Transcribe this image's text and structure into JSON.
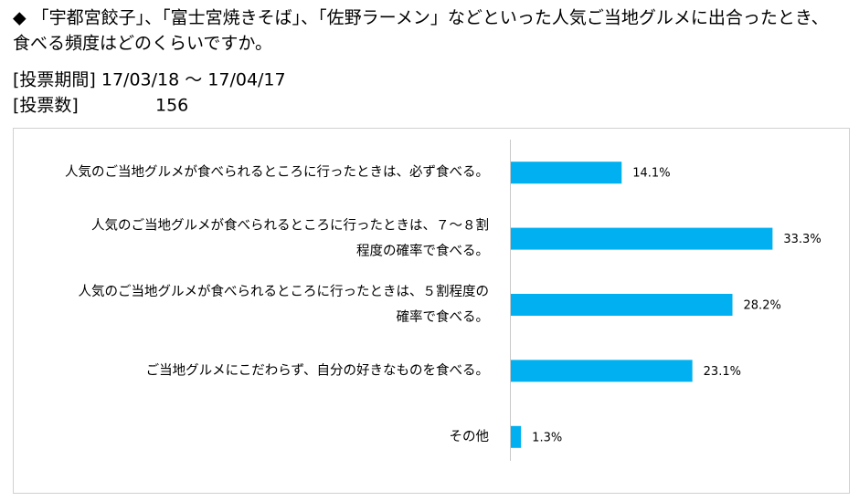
{
  "header": {
    "title": [
      "◆ 「宇都宮餃子」、「富士宮焼きそば」、「佐野ラーメン」などといった人気ご当地グルメに出合ったとき、",
      "食べる頻度はどのくらいですか。"
    ],
    "period": "[投票期間] 17/03/18 ～ 17/04/17",
    "votes_label": "[投票数]",
    "votes": 156
  },
  "chart_data": {
    "type": "barh",
    "categories": [
      [
        "人気のご当地グルメが食べられるところに行ったときは、必ず食べる。"
      ],
      [
        "人気のご当地グルメが食べられるところに行ったときは、７～８割",
        "程度の確率で食べる。"
      ],
      [
        "人気のご当地グルメが食べられるところに行ったときは、５割程度の",
        "確率で食べる。"
      ],
      [
        "ご当地グルメにこだわらず、自分の好きなものを食べる。"
      ],
      [
        "その他"
      ]
    ],
    "values": [
      14.1,
      33.3,
      28.2,
      23.1,
      1.3
    ],
    "value_labels": [
      "14.1%",
      "33.3%",
      "28.2%",
      "23.1%",
      "1.3%"
    ],
    "color": "#00b0f0",
    "xlim": [
      0,
      35
    ]
  }
}
